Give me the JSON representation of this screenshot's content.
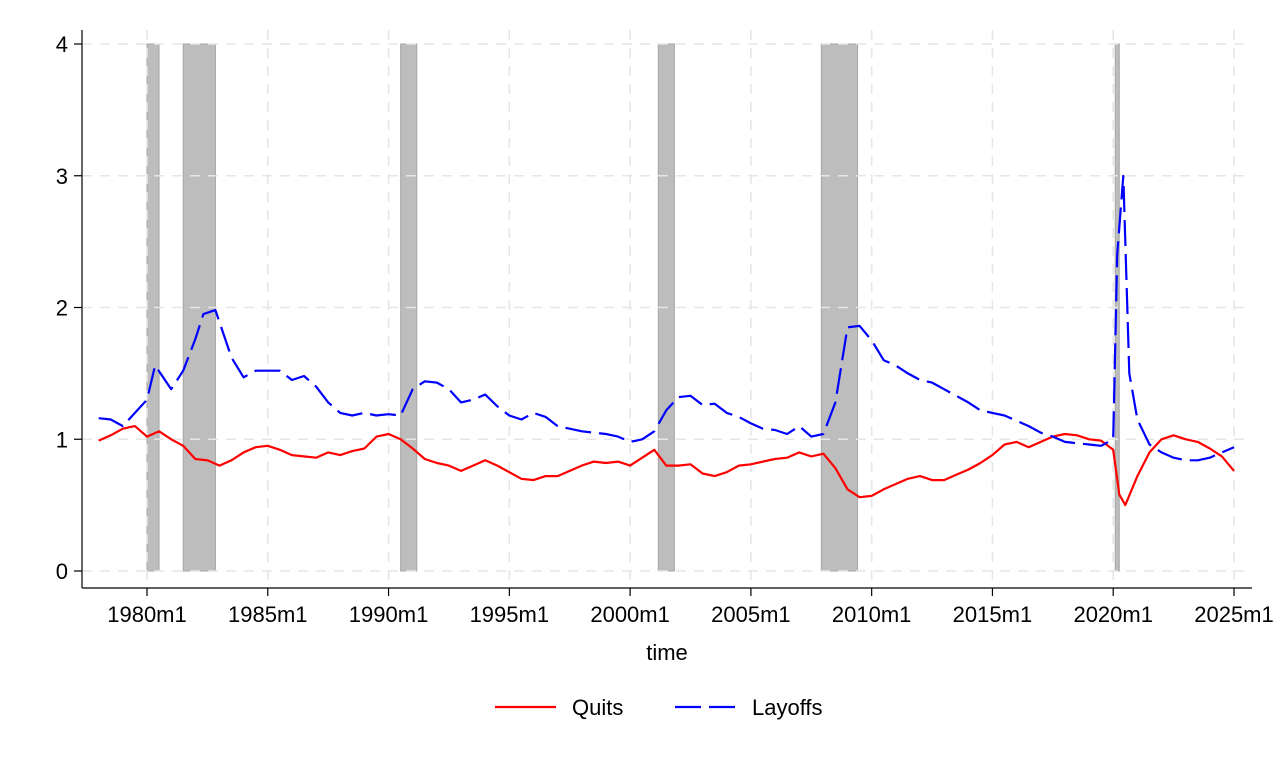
{
  "chart_data": {
    "type": "line",
    "title": "",
    "xlabel": "time",
    "ylabel": "",
    "xlim": [
      "1977m3",
      "2025m2"
    ],
    "ylim": [
      0,
      4
    ],
    "grid": true,
    "legend_position": "bottom-center",
    "x_ticks": [
      "1980m1",
      "1985m1",
      "1990m1",
      "1995m1",
      "2000m1",
      "2005m1",
      "2010m1",
      "2015m1",
      "2020m1",
      "2025m1"
    ],
    "y_ticks": [
      "0",
      "1",
      "2",
      "3",
      "4"
    ],
    "recessions": [
      [
        "1980m1",
        "1980m7"
      ],
      [
        "1981m7",
        "1982m11"
      ],
      [
        "1990m7",
        "1991m3"
      ],
      [
        "2001m3",
        "2001m11"
      ],
      [
        "2007m12",
        "2009m6"
      ],
      [
        "2020m2",
        "2020m4"
      ]
    ],
    "series": [
      {
        "name": "Quits",
        "color": "#ff0000",
        "dash": "solid",
        "points": [
          [
            "1978m1",
            0.99
          ],
          [
            "1978m7",
            1.03
          ],
          [
            "1979m1",
            1.08
          ],
          [
            "1979m7",
            1.1
          ],
          [
            "1980m1",
            1.02
          ],
          [
            "1980m7",
            1.06
          ],
          [
            "1981m1",
            1.0
          ],
          [
            "1981m7",
            0.95
          ],
          [
            "1982m1",
            0.85
          ],
          [
            "1982m7",
            0.84
          ],
          [
            "1983m1",
            0.8
          ],
          [
            "1983m7",
            0.84
          ],
          [
            "1984m1",
            0.9
          ],
          [
            "1984m7",
            0.94
          ],
          [
            "1985m1",
            0.95
          ],
          [
            "1985m7",
            0.92
          ],
          [
            "1986m1",
            0.88
          ],
          [
            "1986m7",
            0.87
          ],
          [
            "1987m1",
            0.86
          ],
          [
            "1987m7",
            0.9
          ],
          [
            "1988m1",
            0.88
          ],
          [
            "1988m7",
            0.91
          ],
          [
            "1989m1",
            0.93
          ],
          [
            "1989m7",
            1.02
          ],
          [
            "1990m1",
            1.04
          ],
          [
            "1990m7",
            1.0
          ],
          [
            "1991m1",
            0.93
          ],
          [
            "1991m7",
            0.85
          ],
          [
            "1992m1",
            0.82
          ],
          [
            "1992m7",
            0.8
          ],
          [
            "1993m1",
            0.76
          ],
          [
            "1993m7",
            0.8
          ],
          [
            "1994m1",
            0.84
          ],
          [
            "1994m7",
            0.8
          ],
          [
            "1995m1",
            0.75
          ],
          [
            "1995m7",
            0.7
          ],
          [
            "1996m1",
            0.69
          ],
          [
            "1996m7",
            0.72
          ],
          [
            "1997m1",
            0.72
          ],
          [
            "1997m7",
            0.76
          ],
          [
            "1998m1",
            0.8
          ],
          [
            "1998m7",
            0.83
          ],
          [
            "1999m1",
            0.82
          ],
          [
            "1999m7",
            0.83
          ],
          [
            "2000m1",
            0.8
          ],
          [
            "2000m7",
            0.86
          ],
          [
            "2001m1",
            0.92
          ],
          [
            "2001m7",
            0.8
          ],
          [
            "2002m1",
            0.8
          ],
          [
            "2002m7",
            0.81
          ],
          [
            "2003m1",
            0.74
          ],
          [
            "2003m7",
            0.72
          ],
          [
            "2004m1",
            0.75
          ],
          [
            "2004m7",
            0.8
          ],
          [
            "2005m1",
            0.81
          ],
          [
            "2005m7",
            0.83
          ],
          [
            "2006m1",
            0.85
          ],
          [
            "2006m7",
            0.86
          ],
          [
            "2007m1",
            0.9
          ],
          [
            "2007m7",
            0.87
          ],
          [
            "2008m1",
            0.89
          ],
          [
            "2008m7",
            0.78
          ],
          [
            "2009m1",
            0.62
          ],
          [
            "2009m7",
            0.56
          ],
          [
            "2010m1",
            0.57
          ],
          [
            "2010m7",
            0.62
          ],
          [
            "2011m1",
            0.66
          ],
          [
            "2011m7",
            0.7
          ],
          [
            "2012m1",
            0.72
          ],
          [
            "2012m7",
            0.69
          ],
          [
            "2013m1",
            0.69
          ],
          [
            "2013m7",
            0.73
          ],
          [
            "2014m1",
            0.77
          ],
          [
            "2014m7",
            0.82
          ],
          [
            "2015m1",
            0.88
          ],
          [
            "2015m7",
            0.96
          ],
          [
            "2016m1",
            0.98
          ],
          [
            "2016m7",
            0.94
          ],
          [
            "2017m1",
            0.98
          ],
          [
            "2017m7",
            1.02
          ],
          [
            "2018m1",
            1.04
          ],
          [
            "2018m7",
            1.03
          ],
          [
            "2019m1",
            1.0
          ],
          [
            "2019m7",
            0.99
          ],
          [
            "2020m1",
            0.92
          ],
          [
            "2020m4",
            0.58
          ],
          [
            "2020m7",
            0.5
          ],
          [
            "2021m1",
            0.72
          ],
          [
            "2021m7",
            0.9
          ],
          [
            "2022m1",
            1.0
          ],
          [
            "2022m7",
            1.03
          ],
          [
            "2023m1",
            1.0
          ],
          [
            "2023m7",
            0.98
          ],
          [
            "2024m1",
            0.93
          ],
          [
            "2024m7",
            0.87
          ],
          [
            "2025m1",
            0.76
          ]
        ]
      },
      {
        "name": "Layoffs",
        "color": "#0000ff",
        "dash": "dashed",
        "points": [
          [
            "1978m1",
            1.16
          ],
          [
            "1978m7",
            1.15
          ],
          [
            "1979m1",
            1.1
          ],
          [
            "1979m7",
            1.2
          ],
          [
            "1980m1",
            1.3
          ],
          [
            "1980m5",
            1.56
          ],
          [
            "1981m1",
            1.38
          ],
          [
            "1981m7",
            1.52
          ],
          [
            "1982m1",
            1.76
          ],
          [
            "1982m5",
            1.95
          ],
          [
            "1982m11",
            1.98
          ],
          [
            "1983m7",
            1.62
          ],
          [
            "1984m1",
            1.47
          ],
          [
            "1984m7",
            1.52
          ],
          [
            "1985m1",
            1.52
          ],
          [
            "1985m7",
            1.52
          ],
          [
            "1986m1",
            1.45
          ],
          [
            "1986m7",
            1.48
          ],
          [
            "1987m1",
            1.4
          ],
          [
            "1987m7",
            1.28
          ],
          [
            "1988m1",
            1.2
          ],
          [
            "1988m7",
            1.18
          ],
          [
            "1989m1",
            1.2
          ],
          [
            "1989m7",
            1.18
          ],
          [
            "1990m1",
            1.19
          ],
          [
            "1990m7",
            1.18
          ],
          [
            "1991m1",
            1.38
          ],
          [
            "1991m7",
            1.44
          ],
          [
            "1992m1",
            1.43
          ],
          [
            "1992m7",
            1.38
          ],
          [
            "1993m1",
            1.28
          ],
          [
            "1993m7",
            1.3
          ],
          [
            "1994m1",
            1.34
          ],
          [
            "1994m7",
            1.25
          ],
          [
            "1995m1",
            1.18
          ],
          [
            "1995m7",
            1.15
          ],
          [
            "1996m1",
            1.2
          ],
          [
            "1996m7",
            1.17
          ],
          [
            "1997m1",
            1.1
          ],
          [
            "1997m7",
            1.08
          ],
          [
            "1998m1",
            1.06
          ],
          [
            "1998m7",
            1.05
          ],
          [
            "1999m1",
            1.04
          ],
          [
            "1999m7",
            1.02
          ],
          [
            "2000m1",
            0.98
          ],
          [
            "2000m7",
            1.0
          ],
          [
            "2001m1",
            1.06
          ],
          [
            "2001m7",
            1.22
          ],
          [
            "2002m1",
            1.32
          ],
          [
            "2002m7",
            1.33
          ],
          [
            "2003m1",
            1.26
          ],
          [
            "2003m7",
            1.27
          ],
          [
            "2004m1",
            1.2
          ],
          [
            "2004m7",
            1.17
          ],
          [
            "2005m1",
            1.12
          ],
          [
            "2005m7",
            1.08
          ],
          [
            "2006m1",
            1.07
          ],
          [
            "2006m7",
            1.04
          ],
          [
            "2007m1",
            1.1
          ],
          [
            "2007m7",
            1.02
          ],
          [
            "2008m1",
            1.04
          ],
          [
            "2008m7",
            1.28
          ],
          [
            "2009m1",
            1.85
          ],
          [
            "2009m7",
            1.86
          ],
          [
            "2010m1",
            1.75
          ],
          [
            "2010m7",
            1.6
          ],
          [
            "2011m1",
            1.56
          ],
          [
            "2011m7",
            1.5
          ],
          [
            "2012m1",
            1.45
          ],
          [
            "2012m7",
            1.43
          ],
          [
            "2013m1",
            1.38
          ],
          [
            "2013m7",
            1.33
          ],
          [
            "2014m1",
            1.28
          ],
          [
            "2014m7",
            1.22
          ],
          [
            "2015m1",
            1.2
          ],
          [
            "2015m7",
            1.18
          ],
          [
            "2016m1",
            1.14
          ],
          [
            "2016m7",
            1.1
          ],
          [
            "2017m1",
            1.05
          ],
          [
            "2017m7",
            1.02
          ],
          [
            "2018m1",
            0.98
          ],
          [
            "2018m7",
            0.97
          ],
          [
            "2019m1",
            0.96
          ],
          [
            "2019m7",
            0.95
          ],
          [
            "2020m1",
            1.0
          ],
          [
            "2020m3",
            2.4
          ],
          [
            "2020m6",
            3.0
          ],
          [
            "2020m9",
            1.5
          ],
          [
            "2021m1",
            1.15
          ],
          [
            "2021m7",
            0.96
          ],
          [
            "2022m1",
            0.9
          ],
          [
            "2022m7",
            0.86
          ],
          [
            "2023m1",
            0.84
          ],
          [
            "2023m7",
            0.84
          ],
          [
            "2024m1",
            0.86
          ],
          [
            "2024m7",
            0.9
          ],
          [
            "2025m1",
            0.94
          ]
        ]
      }
    ]
  }
}
